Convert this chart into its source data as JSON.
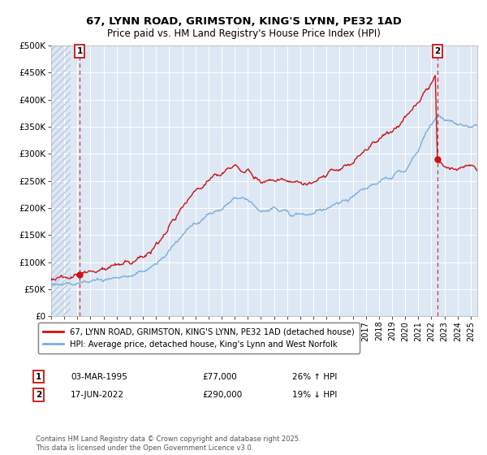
{
  "title_line1": "67, LYNN ROAD, GRIMSTON, KING'S LYNN, PE32 1AD",
  "title_line2": "Price paid vs. HM Land Registry's House Price Index (HPI)",
  "background_color": "#ffffff",
  "plot_bg_color": "#dde8f4",
  "grid_color": "#ffffff",
  "hatch_color": "#b8c8dc",
  "sale1_date": "03-MAR-1995",
  "sale1_price": 77000,
  "sale1_label": "26% ↑ HPI",
  "sale1_x": 1995.17,
  "sale2_date": "17-JUN-2022",
  "sale2_price": 290000,
  "sale2_label": "19% ↓ HPI",
  "sale2_x": 2022.46,
  "legend_label1": "67, LYNN ROAD, GRIMSTON, KING'S LYNN, PE32 1AD (detached house)",
  "legend_label2": "HPI: Average price, detached house, King's Lynn and West Norfolk",
  "footer": "Contains HM Land Registry data © Crown copyright and database right 2025.\nThis data is licensed under the Open Government Licence v3.0.",
  "ylim": [
    0,
    500000
  ],
  "xlim_start": 1993,
  "xlim_end": 2025.5,
  "yticks": [
    0,
    50000,
    100000,
    150000,
    200000,
    250000,
    300000,
    350000,
    400000,
    450000,
    500000
  ],
  "ytick_labels": [
    "£0",
    "£50K",
    "£100K",
    "£150K",
    "£200K",
    "£250K",
    "£300K",
    "£350K",
    "£400K",
    "£450K",
    "£500K"
  ],
  "xticks": [
    1993,
    1994,
    1995,
    1996,
    1997,
    1998,
    1999,
    2000,
    2001,
    2002,
    2003,
    2004,
    2005,
    2006,
    2007,
    2008,
    2009,
    2010,
    2011,
    2012,
    2013,
    2014,
    2015,
    2016,
    2017,
    2018,
    2019,
    2020,
    2021,
    2022,
    2023,
    2024,
    2025
  ],
  "line_color_red": "#cc1111",
  "line_color_blue": "#7aaddb",
  "marker_box_color": "#cc1111",
  "dashed_line_color": "#cc1111"
}
